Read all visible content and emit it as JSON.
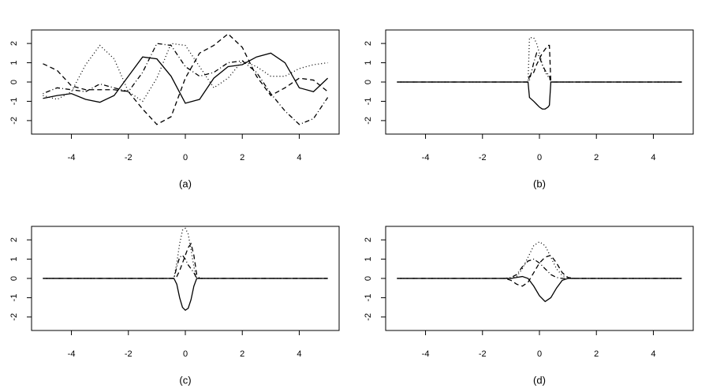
{
  "chart_data": [
    {
      "type": "line",
      "caption": "(a)",
      "xlim": [
        -5.4,
        5.4
      ],
      "ylim": [
        -2.7,
        2.7
      ],
      "xticks": [
        -4,
        -2,
        0,
        2,
        4
      ],
      "yticks": [
        -2,
        -1,
        0,
        1,
        2
      ],
      "x": [
        -5,
        -4.5,
        -4,
        -3.5,
        -3,
        -2.5,
        -2,
        -1.5,
        -1,
        -0.5,
        0,
        0.5,
        1,
        1.5,
        2,
        2.5,
        3,
        3.5,
        4,
        4.5,
        5
      ],
      "series": [
        {
          "linestyle": "solid",
          "color": "#000000",
          "values": [
            -0.85,
            -0.7,
            -0.6,
            -0.9,
            -1.05,
            -0.7,
            0.3,
            1.3,
            1.2,
            0.3,
            -1.1,
            -0.9,
            0.2,
            0.8,
            0.9,
            1.3,
            1.5,
            1.0,
            -0.3,
            -0.5,
            0.2
          ]
        },
        {
          "linestyle": "dashed",
          "color": "#000000",
          "values": [
            0.95,
            0.6,
            -0.2,
            -0.4,
            -0.4,
            -0.4,
            -0.5,
            -1.4,
            -2.2,
            -1.8,
            0.2,
            1.5,
            1.9,
            2.5,
            1.8,
            0.3,
            -0.7,
            -0.3,
            0.2,
            0.1,
            -0.5
          ]
        },
        {
          "linestyle": "dotted",
          "color": "#000000",
          "values": [
            -0.7,
            -0.9,
            -0.5,
            0.9,
            1.9,
            1.2,
            -0.5,
            -1.0,
            0.2,
            2.0,
            1.9,
            0.8,
            -0.3,
            0.2,
            1.1,
            0.8,
            0.3,
            0.3,
            0.7,
            0.9,
            1.0
          ]
        },
        {
          "linestyle": "dotdash",
          "color": "#000000",
          "values": [
            -0.6,
            -0.3,
            -0.4,
            -0.5,
            -0.1,
            -0.3,
            -0.5,
            0.5,
            2.0,
            1.9,
            0.8,
            0.3,
            0.5,
            1.0,
            1.1,
            0.5,
            -0.6,
            -1.5,
            -2.2,
            -1.9,
            -0.8
          ]
        }
      ]
    },
    {
      "type": "line",
      "caption": "(b)",
      "xlim": [
        -5.4,
        5.4
      ],
      "ylim": [
        -2.7,
        2.7
      ],
      "xticks": [
        -4,
        -2,
        0,
        2,
        4
      ],
      "yticks": [
        -2,
        -1,
        0,
        1,
        2
      ],
      "x": [
        -5,
        -0.4,
        -0.35,
        -0.2,
        -0.1,
        0,
        0.1,
        0.2,
        0.3,
        0.35,
        0.4,
        5
      ],
      "series": [
        {
          "linestyle": "solid",
          "color": "#000000",
          "values": [
            0,
            0,
            -0.8,
            -1.0,
            -1.15,
            -1.3,
            -1.4,
            -1.4,
            -1.3,
            -1.2,
            0,
            0
          ]
        },
        {
          "linestyle": "dashed",
          "color": "#000000",
          "values": [
            0,
            0,
            0.3,
            0.5,
            0.9,
            1.2,
            1.5,
            1.7,
            1.9,
            1.9,
            0,
            0
          ]
        },
        {
          "linestyle": "dotted",
          "color": "#000000",
          "values": [
            0,
            0,
            2.3,
            2.3,
            2.0,
            1.5,
            0.9,
            0.5,
            0.3,
            0.2,
            0,
            0
          ]
        },
        {
          "linestyle": "dotdash",
          "color": "#000000",
          "values": [
            0,
            0,
            0.1,
            1.0,
            1.5,
            1.3,
            0.9,
            0.6,
            0.4,
            0.3,
            0,
            0
          ]
        }
      ]
    },
    {
      "type": "line",
      "caption": "(c)",
      "xlim": [
        -5.4,
        5.4
      ],
      "ylim": [
        -2.7,
        2.7
      ],
      "xticks": [
        -4,
        -2,
        0,
        2,
        4
      ],
      "yticks": [
        -2,
        -1,
        0,
        1,
        2
      ],
      "x": [
        -5,
        -0.5,
        -0.4,
        -0.3,
        -0.2,
        -0.1,
        0,
        0.1,
        0.2,
        0.3,
        0.4,
        0.5,
        5
      ],
      "series": [
        {
          "linestyle": "solid",
          "color": "#000000",
          "values": [
            0,
            0,
            0,
            -0.3,
            -1.0,
            -1.5,
            -1.65,
            -1.55,
            -1.1,
            -0.4,
            0,
            0,
            0
          ]
        },
        {
          "linestyle": "dashed",
          "color": "#000000",
          "values": [
            0,
            0,
            0,
            0.1,
            0.4,
            0.8,
            1.2,
            1.6,
            1.8,
            1.2,
            0.2,
            0,
            0
          ]
        },
        {
          "linestyle": "dotted",
          "color": "#000000",
          "values": [
            0,
            0,
            0,
            0.8,
            1.8,
            2.5,
            2.6,
            2.3,
            1.5,
            0.6,
            0,
            0,
            0
          ]
        },
        {
          "linestyle": "dotdash",
          "color": "#000000",
          "values": [
            0,
            0,
            0,
            0.6,
            1.1,
            1.2,
            1.0,
            0.7,
            0.5,
            0.3,
            0,
            0,
            0
          ]
        }
      ]
    },
    {
      "type": "line",
      "caption": "(d)",
      "xlim": [
        -5.4,
        5.4
      ],
      "ylim": [
        -2.7,
        2.7
      ],
      "xticks": [
        -4,
        -2,
        0,
        2,
        4
      ],
      "yticks": [
        -2,
        -1,
        0,
        1,
        2
      ],
      "x": [
        -5,
        -1.2,
        -1,
        -0.8,
        -0.6,
        -0.4,
        -0.2,
        0,
        0.2,
        0.4,
        0.6,
        0.8,
        1,
        1.2,
        5
      ],
      "series": [
        {
          "linestyle": "solid",
          "color": "#000000",
          "values": [
            0,
            0,
            0,
            0.05,
            0.1,
            0,
            -0.4,
            -0.9,
            -1.2,
            -1.0,
            -0.5,
            -0.1,
            0,
            0,
            0
          ]
        },
        {
          "linestyle": "dashed",
          "color": "#000000",
          "values": [
            0,
            0,
            -0.1,
            -0.3,
            -0.4,
            -0.2,
            0.3,
            0.8,
            1.1,
            1.2,
            0.8,
            0.3,
            0.05,
            0,
            0
          ]
        },
        {
          "linestyle": "dotted",
          "color": "#000000",
          "values": [
            0,
            0,
            0,
            0.1,
            0.5,
            1.1,
            1.7,
            1.9,
            1.7,
            1.1,
            0.5,
            0.15,
            0.05,
            0,
            0
          ]
        },
        {
          "linestyle": "dotdash",
          "color": "#000000",
          "values": [
            0,
            0,
            0.05,
            0.2,
            0.6,
            0.9,
            1.0,
            0.8,
            0.5,
            0.2,
            0.05,
            0,
            0,
            0,
            0
          ]
        }
      ]
    }
  ]
}
